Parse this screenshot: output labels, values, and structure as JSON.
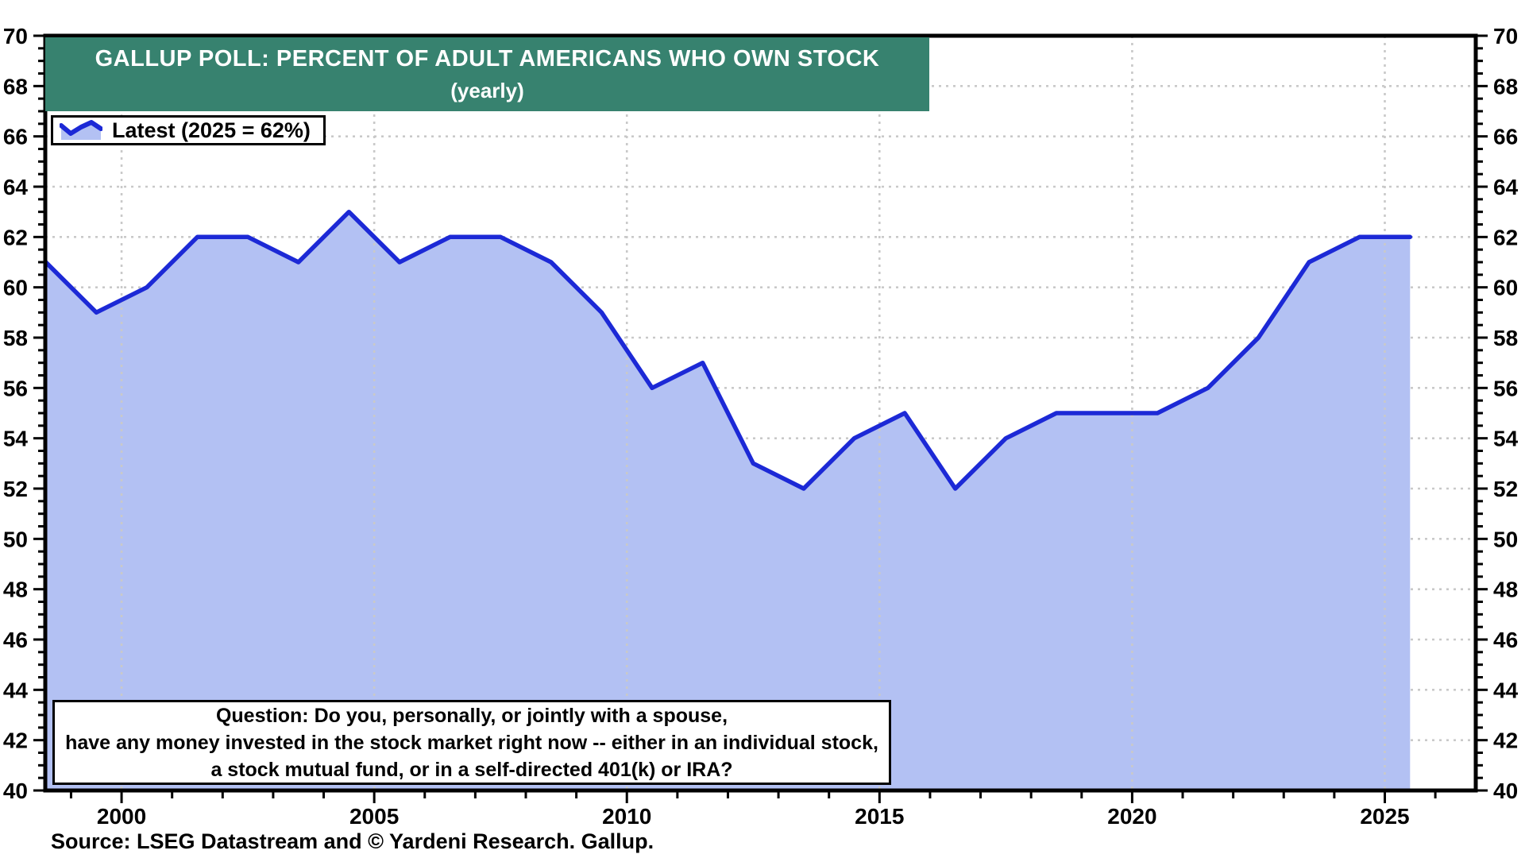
{
  "header": {
    "title": "GALLUP POLL: PERCENT OF ADULT AMERICANS WHO OWN STOCK",
    "subtitle": "(yearly)",
    "bg_color": "#37826F",
    "text_color": "#ffffff"
  },
  "legend": {
    "label": "Latest (2025 = 62%)"
  },
  "question_box": {
    "lines": [
      "Question: Do you, personally, or jointly with a spouse,",
      "have any money invested in the stock market right now -- either in an individual stock,",
      "a stock mutual fund, or in a self-directed 401(k) or IRA?"
    ]
  },
  "source": "Source: LSEG Datastream and © Yardeni Research. Gallup.",
  "chart_data": {
    "type": "area",
    "title": "GALLUP POLL: PERCENT OF ADULT AMERICANS WHO OWN STOCK",
    "subtitle": "(yearly)",
    "x": [
      1998,
      1999,
      2000,
      2001,
      2002,
      2003,
      2004,
      2005,
      2006,
      2007,
      2008,
      2009,
      2010,
      2011,
      2012,
      2013,
      2014,
      2015,
      2016,
      2017,
      2018,
      2019,
      2020,
      2021,
      2022,
      2023,
      2024,
      2025
    ],
    "values": [
      61,
      59,
      60,
      62,
      62,
      61,
      63,
      61,
      62,
      62,
      61,
      59,
      56,
      57,
      53,
      52,
      54,
      55,
      52,
      54,
      55,
      55,
      55,
      56,
      58,
      61,
      62,
      62
    ],
    "legend_entry": "Latest (2025 = 62%)",
    "xlabel": "",
    "ylabel": "",
    "ylim": [
      40,
      70
    ],
    "xlim": [
      1998.49,
      2026.8
    ],
    "y_tick_step": 2,
    "y_minor_step": 0.5,
    "x_ticks": [
      2000,
      2005,
      2010,
      2015,
      2020,
      2025
    ],
    "x_minor_step": 1,
    "point_offset": 0.5,
    "grid": true,
    "legend_position": "top-left",
    "line_color": "#1c29d6",
    "fill_color": "#b3c1f3",
    "grid_color": "#c9c9c9",
    "axis_color": "#000000"
  }
}
